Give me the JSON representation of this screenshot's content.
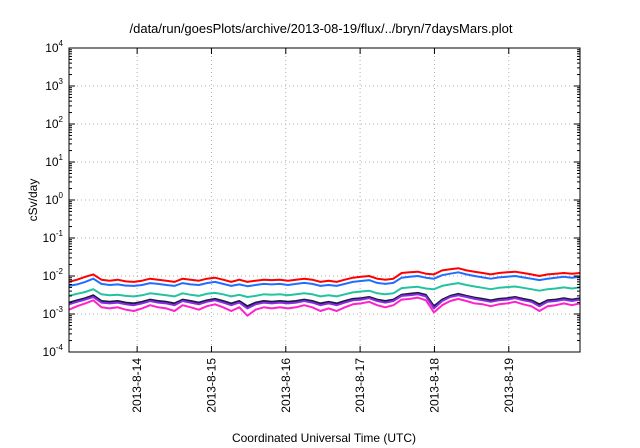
{
  "chart_data": {
    "type": "line",
    "title": "/data/run/goesPlots/archive/2013-08-19/flux/../bryn/7daysMars.plot",
    "xlabel": "Coordinated Universal Time (UTC)",
    "ylabel": "cSv/day",
    "yscale": "log",
    "ylim": [
      0.0001,
      10000
    ],
    "xlim": [
      "2013-08-13T02:00",
      "2013-08-19T23:00"
    ],
    "grid": true,
    "y_ticks": [
      {
        "base": "10",
        "exp": "-4"
      },
      {
        "base": "10",
        "exp": "-3"
      },
      {
        "base": "10",
        "exp": "-2"
      },
      {
        "base": "10",
        "exp": "-1"
      },
      {
        "base": "10",
        "exp": "0"
      },
      {
        "base": "10",
        "exp": "1"
      },
      {
        "base": "10",
        "exp": "2"
      },
      {
        "base": "10",
        "exp": "3"
      },
      {
        "base": "10",
        "exp": "4"
      }
    ],
    "x_ticks": [
      "2013-8-14",
      "2013-8-15",
      "2013-8-16",
      "2013-8-17",
      "2013-8-18",
      "2013-8-19"
    ],
    "series": [
      {
        "color": "#ff0000",
        "values": [
          0.007,
          0.008,
          0.0095,
          0.011,
          0.008,
          0.0075,
          0.008,
          0.0072,
          0.007,
          0.0075,
          0.0085,
          0.008,
          0.0075,
          0.007,
          0.0085,
          0.008,
          0.0075,
          0.0085,
          0.009,
          0.008,
          0.007,
          0.008,
          0.007,
          0.0075,
          0.008,
          0.0078,
          0.008,
          0.0075,
          0.008,
          0.0085,
          0.008,
          0.007,
          0.0075,
          0.007,
          0.008,
          0.009,
          0.0095,
          0.01,
          0.0085,
          0.008,
          0.0085,
          0.012,
          0.0125,
          0.013,
          0.0115,
          0.011,
          0.014,
          0.015,
          0.016,
          0.014,
          0.013,
          0.012,
          0.011,
          0.012,
          0.0125,
          0.013,
          0.012,
          0.011,
          0.01,
          0.011,
          0.0115,
          0.012,
          0.0115,
          0.012
        ]
      },
      {
        "color": "#1f6fff",
        "values": [
          0.0055,
          0.006,
          0.007,
          0.0085,
          0.0062,
          0.0058,
          0.006,
          0.0056,
          0.0055,
          0.0058,
          0.0065,
          0.0062,
          0.0058,
          0.0055,
          0.0065,
          0.006,
          0.0058,
          0.0065,
          0.007,
          0.0062,
          0.0055,
          0.006,
          0.0054,
          0.0058,
          0.0062,
          0.006,
          0.0062,
          0.0058,
          0.0062,
          0.0066,
          0.0062,
          0.0055,
          0.0058,
          0.0055,
          0.0062,
          0.007,
          0.0074,
          0.0078,
          0.0066,
          0.0062,
          0.0066,
          0.009,
          0.0095,
          0.01,
          0.009,
          0.0085,
          0.0105,
          0.0115,
          0.0125,
          0.011,
          0.01,
          0.0092,
          0.0085,
          0.0092,
          0.0096,
          0.01,
          0.0092,
          0.0085,
          0.0078,
          0.0085,
          0.009,
          0.0095,
          0.009,
          0.0095
        ]
      },
      {
        "color": "#22c4a0",
        "values": [
          0.003,
          0.0034,
          0.0038,
          0.0045,
          0.0033,
          0.0031,
          0.0032,
          0.003,
          0.0029,
          0.0031,
          0.0035,
          0.0033,
          0.0031,
          0.0029,
          0.0035,
          0.0032,
          0.003,
          0.0034,
          0.0036,
          0.0033,
          0.0029,
          0.0032,
          0.0028,
          0.003,
          0.0033,
          0.0032,
          0.0033,
          0.0031,
          0.0033,
          0.0035,
          0.0033,
          0.0029,
          0.0031,
          0.0029,
          0.0033,
          0.0037,
          0.0039,
          0.0041,
          0.0035,
          0.0033,
          0.0035,
          0.0048,
          0.005,
          0.0052,
          0.0047,
          0.0045,
          0.0055,
          0.006,
          0.0065,
          0.0058,
          0.0053,
          0.0049,
          0.0045,
          0.0049,
          0.0051,
          0.0053,
          0.0049,
          0.0045,
          0.0041,
          0.0045,
          0.0047,
          0.005,
          0.0047,
          0.005
        ]
      },
      {
        "color": "#1a1a40",
        "values": [
          0.002,
          0.0023,
          0.0026,
          0.0031,
          0.0022,
          0.0021,
          0.0022,
          0.002,
          0.0019,
          0.0021,
          0.0024,
          0.0022,
          0.0021,
          0.0019,
          0.0024,
          0.0022,
          0.002,
          0.0023,
          0.0025,
          0.0022,
          0.0019,
          0.0022,
          0.0016,
          0.002,
          0.0022,
          0.0021,
          0.0022,
          0.0021,
          0.0022,
          0.0024,
          0.0022,
          0.0019,
          0.0021,
          0.0019,
          0.0022,
          0.0025,
          0.0026,
          0.0028,
          0.0024,
          0.0022,
          0.0024,
          0.0032,
          0.0034,
          0.0036,
          0.0032,
          0.0016,
          0.0024,
          0.003,
          0.0034,
          0.003,
          0.0027,
          0.0025,
          0.0023,
          0.0025,
          0.0026,
          0.0028,
          0.0025,
          0.0023,
          0.0018,
          0.0023,
          0.0024,
          0.0026,
          0.0024,
          0.0026
        ]
      },
      {
        "color": "#8a2be2",
        "values": [
          0.0018,
          0.0021,
          0.0024,
          0.0028,
          0.002,
          0.0019,
          0.002,
          0.0018,
          0.0017,
          0.0019,
          0.0022,
          0.002,
          0.0019,
          0.0017,
          0.0022,
          0.002,
          0.0018,
          0.0021,
          0.0023,
          0.002,
          0.0017,
          0.002,
          0.0014,
          0.0018,
          0.002,
          0.0019,
          0.002,
          0.0019,
          0.002,
          0.0022,
          0.002,
          0.0017,
          0.0019,
          0.0017,
          0.002,
          0.0023,
          0.0024,
          0.0026,
          0.0022,
          0.002,
          0.0022,
          0.003,
          0.0031,
          0.0033,
          0.0029,
          0.0014,
          0.0022,
          0.0028,
          0.0031,
          0.0028,
          0.0025,
          0.0023,
          0.0021,
          0.0023,
          0.0024,
          0.0026,
          0.0023,
          0.0021,
          0.0016,
          0.0021,
          0.0022,
          0.0024,
          0.0022,
          0.0024
        ]
      },
      {
        "color": "#ff22cc",
        "values": [
          0.0013,
          0.0016,
          0.0019,
          0.0023,
          0.0015,
          0.0014,
          0.0015,
          0.0013,
          0.0012,
          0.0014,
          0.0017,
          0.0015,
          0.0014,
          0.0012,
          0.0017,
          0.0015,
          0.0013,
          0.0016,
          0.0018,
          0.0015,
          0.0012,
          0.0015,
          0.0009,
          0.0013,
          0.0015,
          0.0014,
          0.0015,
          0.0014,
          0.0015,
          0.0017,
          0.0015,
          0.0012,
          0.0014,
          0.0012,
          0.0015,
          0.0018,
          0.0019,
          0.0021,
          0.0017,
          0.0015,
          0.0017,
          0.0024,
          0.0025,
          0.0027,
          0.0023,
          0.0011,
          0.0017,
          0.0022,
          0.0025,
          0.0022,
          0.0019,
          0.0018,
          0.0016,
          0.0018,
          0.0019,
          0.0021,
          0.0018,
          0.0016,
          0.0012,
          0.0016,
          0.0017,
          0.0019,
          0.0017,
          0.0019
        ]
      }
    ]
  }
}
